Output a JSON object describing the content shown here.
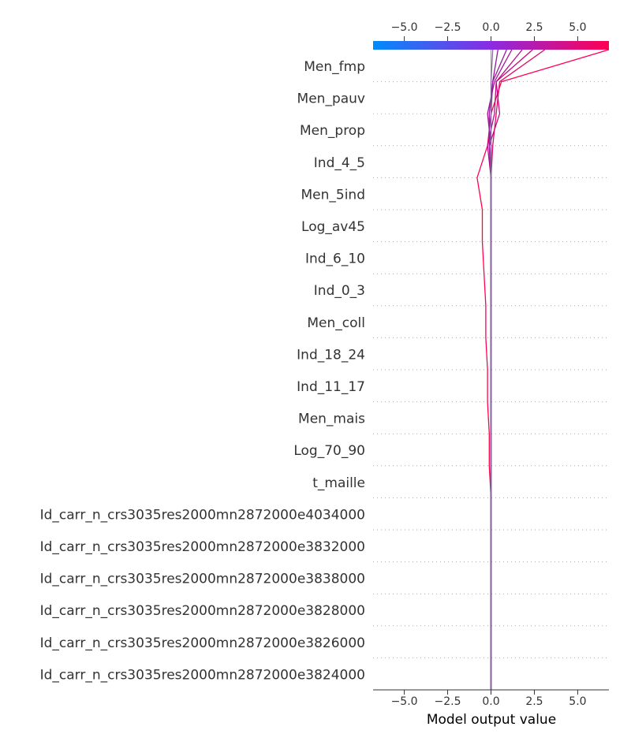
{
  "chart_data": {
    "type": "line",
    "title": "",
    "xlabel": "Model output value",
    "ylabel": "",
    "xlim": [
      -6.8,
      6.8
    ],
    "x_ticks": [
      -5.0,
      -2.5,
      0.0,
      2.5,
      5.0
    ],
    "x_tick_labels": [
      "−5.0",
      "−2.5",
      "0.0",
      "2.5",
      "5.0"
    ],
    "base_value": 0.0,
    "colorbar": {
      "low_color": "#008bfb",
      "high_color": "#ff0052",
      "mid_color": "#8a2be2"
    },
    "features": [
      "Men_fmp",
      "Men_pauv",
      "Men_prop",
      "Ind_4_5",
      "Men_5ind",
      "Log_av45",
      "Ind_6_10",
      "Ind_0_3",
      "Men_coll",
      "Ind_18_24",
      "Ind_11_17",
      "Men_mais",
      "Log_70_90",
      "t_maille",
      "Id_carr_n_crs3035res2000mn2872000e4034000",
      "Id_carr_n_crs3035res2000mn2872000e3832000",
      "Id_carr_n_crs3035res2000mn2872000e3838000",
      "Id_carr_n_crs3035res2000mn2872000e3828000",
      "Id_carr_n_crs3035res2000mn2872000e3826000",
      "Id_carr_n_crs3035res2000mn2872000e3824000"
    ],
    "series": [
      {
        "color": "#ff0052",
        "values": [
          0.0,
          0.0,
          0.0,
          0.0,
          0.0,
          0.0,
          -0.1,
          -0.1,
          -0.2,
          -0.2,
          -0.3,
          -0.3,
          -0.4,
          -0.5,
          -0.5,
          -0.8,
          -0.2,
          0.0,
          0.6,
          6.8
        ]
      },
      {
        "color": "#e00669",
        "values": [
          0.0,
          0.0,
          0.0,
          0.0,
          0.0,
          0.0,
          0.0,
          0.0,
          0.0,
          0.0,
          0.0,
          0.0,
          0.0,
          0.0,
          0.0,
          0.0,
          0.1,
          0.3,
          0.5,
          3.1
        ]
      },
      {
        "color": "#c40a7e",
        "values": [
          0.0,
          0.0,
          0.0,
          0.0,
          0.0,
          0.0,
          0.0,
          0.0,
          0.0,
          0.0,
          0.0,
          0.0,
          0.0,
          0.0,
          0.0,
          0.0,
          -0.1,
          0.5,
          0.3,
          2.4
        ]
      },
      {
        "color": "#b5108a",
        "values": [
          0.0,
          0.0,
          0.0,
          0.0,
          0.0,
          0.0,
          0.0,
          0.0,
          0.0,
          0.0,
          0.0,
          0.0,
          0.0,
          0.0,
          0.0,
          0.0,
          -0.2,
          0.2,
          0.3,
          1.8
        ]
      },
      {
        "color": "#a81592",
        "values": [
          0.0,
          0.0,
          0.0,
          0.0,
          0.0,
          0.0,
          0.0,
          0.0,
          0.0,
          0.0,
          0.0,
          0.0,
          0.0,
          0.0,
          0.0,
          0.0,
          0.0,
          -0.2,
          0.2,
          1.2
        ]
      },
      {
        "color": "#9d189a",
        "values": [
          0.0,
          0.0,
          0.0,
          0.0,
          0.0,
          0.0,
          0.0,
          0.0,
          0.0,
          0.0,
          0.0,
          0.0,
          0.0,
          0.0,
          0.0,
          0.0,
          -0.1,
          -0.1,
          0.1,
          0.9
        ]
      },
      {
        "color": "#93199f",
        "values": [
          0.0,
          0.0,
          0.0,
          0.0,
          0.0,
          0.0,
          0.0,
          0.0,
          0.0,
          0.0,
          0.0,
          0.0,
          0.0,
          0.0,
          0.0,
          0.0,
          0.0,
          0.0,
          0.1,
          0.4
        ]
      },
      {
        "color": "#8a6aa0",
        "values": [
          0.0,
          0.0,
          0.0,
          0.0,
          0.0,
          0.0,
          0.0,
          0.0,
          0.0,
          0.0,
          0.0,
          0.0,
          0.0,
          0.0,
          0.0,
          0.0,
          0.0,
          0.0,
          0.0,
          0.1
        ]
      }
    ],
    "grid": true
  }
}
